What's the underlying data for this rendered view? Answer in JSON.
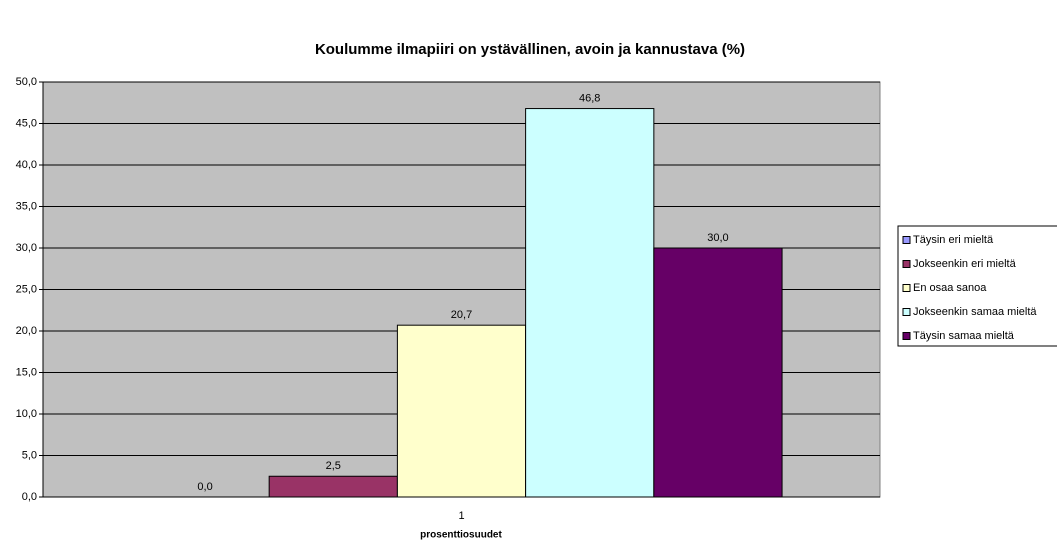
{
  "chart_data": {
    "type": "bar",
    "title": "Koulumme ilmapiiri on ystävällinen, avoin ja kannustava (%)",
    "x_label": "prosenttiosuudet",
    "categories": [
      "1"
    ],
    "series": [
      {
        "name": "Täysin eri mieltä",
        "color": "#9999ff",
        "values": [
          0.0
        ],
        "value_labels": [
          "0,0"
        ]
      },
      {
        "name": "Jokseenkin eri mieltä",
        "color": "#993366",
        "values": [
          2.5
        ],
        "value_labels": [
          "2,5"
        ]
      },
      {
        "name": "En osaa sanoa",
        "color": "#ffffcc",
        "values": [
          20.7
        ],
        "value_labels": [
          "20,7"
        ]
      },
      {
        "name": "Jokseenkin samaa mieltä",
        "color": "#ccffff",
        "values": [
          46.8
        ],
        "value_labels": [
          "46,8"
        ]
      },
      {
        "name": "Täysin samaa mieltä",
        "color": "#660066",
        "values": [
          30.0
        ],
        "value_labels": [
          "30,0"
        ]
      }
    ],
    "ylim": [
      0,
      50
    ],
    "yticks": [
      {
        "value": 0,
        "label": "0,0"
      },
      {
        "value": 5,
        "label": "5,0"
      },
      {
        "value": 10,
        "label": "10,0"
      },
      {
        "value": 15,
        "label": "15,0"
      },
      {
        "value": 20,
        "label": "20,0"
      },
      {
        "value": 25,
        "label": "25,0"
      },
      {
        "value": 30,
        "label": "30,0"
      },
      {
        "value": 35,
        "label": "35,0"
      },
      {
        "value": 40,
        "label": "40,0"
      },
      {
        "value": 45,
        "label": "45,0"
      },
      {
        "value": 50,
        "label": "50,0"
      }
    ],
    "grid": true,
    "legend": "right",
    "plot_background": "#c0c0c0"
  }
}
